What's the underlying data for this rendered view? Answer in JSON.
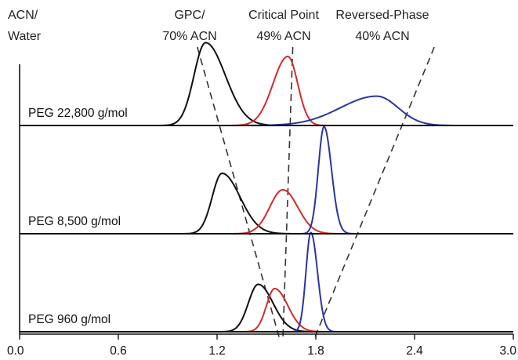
{
  "chart_data": {
    "type": "line",
    "xlim": [
      0.0,
      3.0
    ],
    "x_ticks": [
      "0.0",
      "0.6",
      "1.2",
      "1.8",
      "2.4",
      "3.0"
    ],
    "column_headers": [
      {
        "lines": [
          "ACN/",
          "Water"
        ]
      },
      {
        "lines": [
          "GPC/",
          "70% ACN"
        ]
      },
      {
        "lines": [
          "Critical Point",
          "49% ACN"
        ]
      },
      {
        "lines": [
          "Reversed-Phase",
          "40% ACN"
        ]
      }
    ],
    "colors": {
      "gpc": "#111111",
      "critical": "#d42a2a",
      "reversed": "#2b35a0",
      "axis": "#111111",
      "guide": "#333333"
    },
    "panels": [
      {
        "label": "PEG 22,800 g/mol",
        "series": [
          {
            "color_key": "gpc",
            "peak": 1.13,
            "height": 0.96,
            "sigma_left": 0.07,
            "sigma_right": 0.12
          },
          {
            "color_key": "critical",
            "peak": 1.63,
            "height": 0.8,
            "sigma_left": 0.09,
            "sigma_right": 0.06
          },
          {
            "color_key": "reversed",
            "peak": 2.17,
            "height": 0.34,
            "sigma_left": 0.22,
            "sigma_right": 0.13
          }
        ]
      },
      {
        "label": "PEG 8,500 g/mol",
        "series": [
          {
            "color_key": "gpc",
            "peak": 1.23,
            "height": 0.7,
            "sigma_left": 0.06,
            "sigma_right": 0.11
          },
          {
            "color_key": "critical",
            "peak": 1.6,
            "height": 0.51,
            "sigma_left": 0.08,
            "sigma_right": 0.09
          },
          {
            "color_key": "reversed",
            "peak": 1.85,
            "height": 1.24,
            "sigma_left": 0.035,
            "sigma_right": 0.045
          }
        ]
      },
      {
        "label": "PEG 960 g/mol",
        "series": [
          {
            "color_key": "gpc",
            "peak": 1.45,
            "height": 0.55,
            "sigma_left": 0.06,
            "sigma_right": 0.09
          },
          {
            "color_key": "critical",
            "peak": 1.55,
            "height": 0.5,
            "sigma_left": 0.05,
            "sigma_right": 0.08
          },
          {
            "color_key": "reversed",
            "peak": 1.77,
            "height": 1.15,
            "sigma_left": 0.03,
            "sigma_right": 0.04
          }
        ]
      }
    ],
    "guides": [
      {
        "color_key": "guide",
        "from": [
          1.08,
          1.3
        ],
        "to": [
          1.58,
          -0.1
        ]
      },
      {
        "color_key": "guide",
        "from": [
          1.66,
          1.3
        ],
        "to": [
          1.6,
          -0.1
        ]
      },
      {
        "color_key": "guide",
        "from": [
          2.52,
          1.3
        ],
        "to": [
          1.79,
          -0.1
        ]
      }
    ]
  }
}
